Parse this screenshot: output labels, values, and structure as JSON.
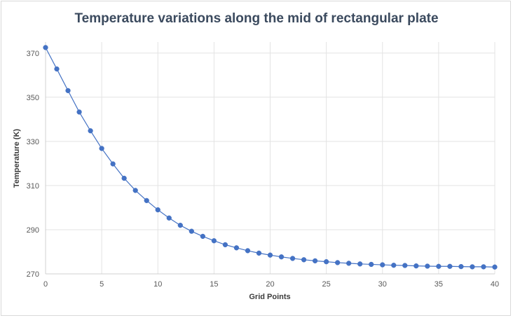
{
  "chart_data": {
    "type": "line",
    "title": "Temperature variations along the mid of rectangular plate",
    "xlabel": "Grid Points",
    "ylabel": "Temperature (K)",
    "xlim": [
      0,
      40
    ],
    "ylim": [
      270,
      375
    ],
    "xticks": [
      0,
      5,
      10,
      15,
      20,
      25,
      30,
      35,
      40
    ],
    "yticks": [
      270,
      290,
      310,
      330,
      350,
      370
    ],
    "grid": true,
    "legend": "none",
    "color": "#4472c4",
    "x": [
      0,
      1,
      2,
      3,
      4,
      5,
      6,
      7,
      8,
      9,
      10,
      11,
      12,
      13,
      14,
      15,
      16,
      17,
      18,
      19,
      20,
      21,
      22,
      23,
      24,
      25,
      26,
      27,
      28,
      29,
      30,
      31,
      32,
      33,
      34,
      35,
      36,
      37,
      38,
      39,
      40
    ],
    "values": [
      372.5,
      362.8,
      353.0,
      343.3,
      334.8,
      326.8,
      319.8,
      313.3,
      307.8,
      303.2,
      299.0,
      295.3,
      292.0,
      289.3,
      287.0,
      285.0,
      283.2,
      281.8,
      280.5,
      279.4,
      278.5,
      277.7,
      277.0,
      276.4,
      275.9,
      275.5,
      275.1,
      274.8,
      274.5,
      274.3,
      274.1,
      273.9,
      273.8,
      273.6,
      273.5,
      273.4,
      273.4,
      273.3,
      273.2,
      273.2,
      273.1
    ]
  }
}
